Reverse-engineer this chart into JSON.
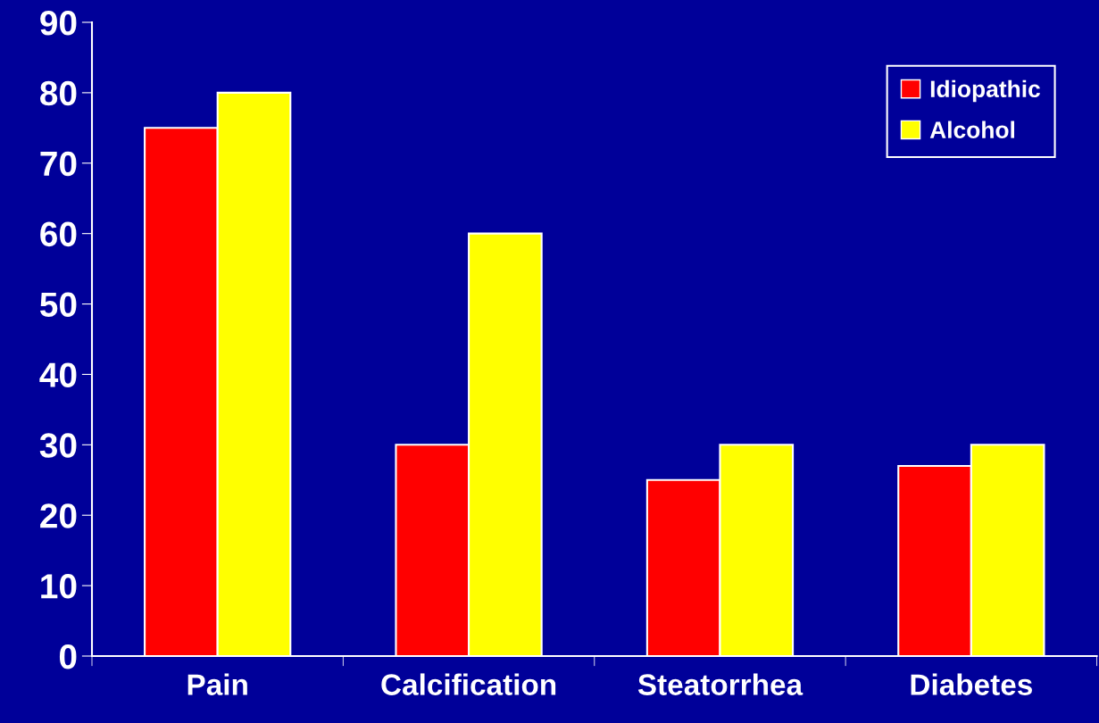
{
  "chart_data": {
    "type": "bar",
    "categories": [
      "Pain",
      "Calcification",
      "Steatorrhea",
      "Diabetes"
    ],
    "series": [
      {
        "name": "Idiopathic",
        "color": "#ff0000",
        "values": [
          75,
          30,
          25,
          27
        ]
      },
      {
        "name": "Alcohol",
        "color": "#ffff00",
        "values": [
          80,
          60,
          30,
          30
        ]
      }
    ],
    "ylim": [
      0,
      90
    ],
    "yticks": [
      0,
      10,
      20,
      30,
      40,
      50,
      60,
      70,
      80,
      90
    ],
    "grid": false,
    "legend": "top right"
  }
}
